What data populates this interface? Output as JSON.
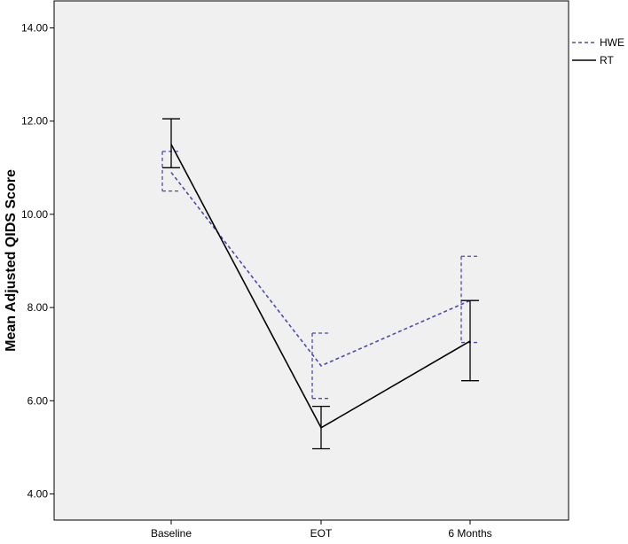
{
  "chart_data": {
    "type": "line",
    "title": "",
    "xlabel": "",
    "ylabel": "Mean Adjusted QIDS Score",
    "categories": [
      "Baseline",
      "EOT",
      "6 Months"
    ],
    "ylim": [
      3.6,
      15.0
    ],
    "yticks": [
      4.0,
      6.0,
      8.0,
      10.0,
      12.0,
      14.0
    ],
    "ytick_labels": [
      "4.00",
      "6.00",
      "8.00",
      "10.00",
      "12.00",
      "14.00"
    ],
    "grid": false,
    "legend_position": "top-right",
    "series": [
      {
        "name": "HWE",
        "style": "dashed",
        "color": "#4b4bb0",
        "values": [
          10.9,
          6.75,
          8.15
        ],
        "error_low": [
          10.5,
          6.05,
          7.25
        ],
        "error_high": [
          11.35,
          7.45,
          9.1
        ]
      },
      {
        "name": "RT",
        "style": "solid",
        "color": "#000000",
        "values": [
          11.5,
          5.42,
          7.28
        ],
        "error_low": [
          11.0,
          4.97,
          6.43
        ],
        "error_high": [
          12.05,
          5.88,
          8.15
        ]
      }
    ],
    "plot_background": "#f0f0f0"
  }
}
